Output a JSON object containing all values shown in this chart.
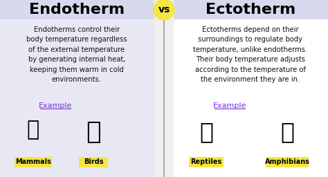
{
  "bg_color": "#f0f0f0",
  "left_bg": "#e8e8f4",
  "right_bg": "#ffffff",
  "title_left": "Endotherm",
  "title_right": "Ectotherm",
  "vs_text": "vs",
  "vs_bg": "#f5e642",
  "title_color": "#000000",
  "title_fontsize": 16,
  "body_fontsize": 7.2,
  "left_body": "Endotherms control their\nbody temperature regardless\nof the external temperature\nby generating internal heat,\nkeeping them warm in cold\nenvironments.",
  "right_body": "Ectotherms depend on their\nsurroundings to regulate body\ntemperature, unlike endotherms.\nTheir body temperature adjusts\naccording to the temperature of\nthe environment they are in.",
  "example_color": "#7b2be2",
  "example_fontsize": 8,
  "label_bg": "#f5e642",
  "label_color": "#000000",
  "label_fontsize": 7,
  "left_labels": [
    "Mammals",
    "Birds"
  ],
  "right_labels": [
    "Reptiles",
    "Amphibians"
  ],
  "divider_color": "#999999",
  "emoji_fontsize": 22,
  "title_bg": "#d8d8ee"
}
